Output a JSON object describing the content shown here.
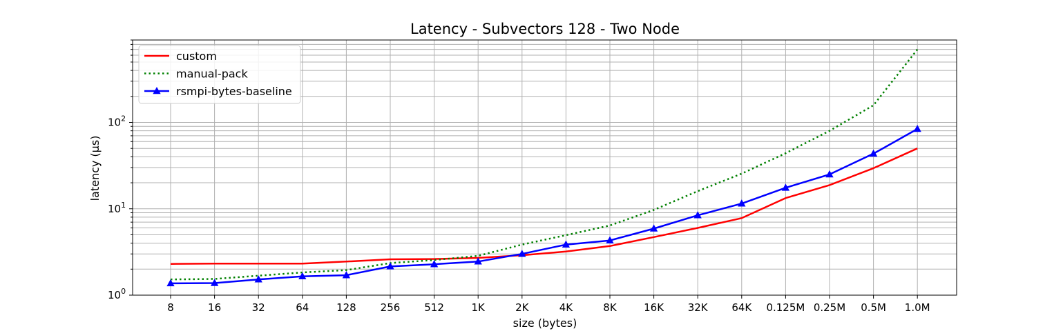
{
  "chart_data": {
    "type": "line",
    "title": "Latency - Subvectors 128 - Two Node",
    "xlabel": "size (bytes)",
    "ylabel": "latency (µs)",
    "yscale": "log",
    "ylim": [
      1,
      900
    ],
    "grid": true,
    "legend_position": "top-left",
    "categories": [
      "8",
      "16",
      "32",
      "64",
      "128",
      "256",
      "512",
      "1K",
      "2K",
      "4K",
      "8K",
      "16K",
      "32K",
      "64K",
      "0.125M",
      "0.25M",
      "0.5M",
      "1.0M"
    ],
    "y_tick_labels": [
      {
        "value": 1,
        "base": "10",
        "exp": "0"
      },
      {
        "value": 10,
        "base": "10",
        "exp": "1"
      },
      {
        "value": 100,
        "base": "10",
        "exp": "2"
      }
    ],
    "series": [
      {
        "name": "custom",
        "color": "#ff0000",
        "style": "solid",
        "marker": "none",
        "values": [
          2.3,
          2.32,
          2.32,
          2.32,
          2.45,
          2.6,
          2.62,
          2.7,
          2.9,
          3.2,
          3.7,
          4.7,
          6.0,
          7.8,
          13.3,
          18.8,
          29.5,
          50.0
        ]
      },
      {
        "name": "manual-pack",
        "color": "#008000",
        "style": "dotted",
        "marker": "none",
        "values": [
          1.52,
          1.54,
          1.68,
          1.83,
          1.95,
          2.35,
          2.55,
          2.85,
          3.85,
          4.95,
          6.4,
          9.7,
          16.0,
          25.5,
          44.0,
          80.0,
          158.0,
          700.0
        ]
      },
      {
        "name": "rsmpi-bytes-baseline",
        "color": "#0000ff",
        "style": "solid",
        "marker": "triangle",
        "values": [
          1.37,
          1.38,
          1.52,
          1.65,
          1.7,
          2.15,
          2.28,
          2.45,
          3.0,
          3.85,
          4.3,
          5.9,
          8.4,
          11.5,
          17.5,
          25.0,
          43.5,
          84.0
        ]
      }
    ]
  }
}
